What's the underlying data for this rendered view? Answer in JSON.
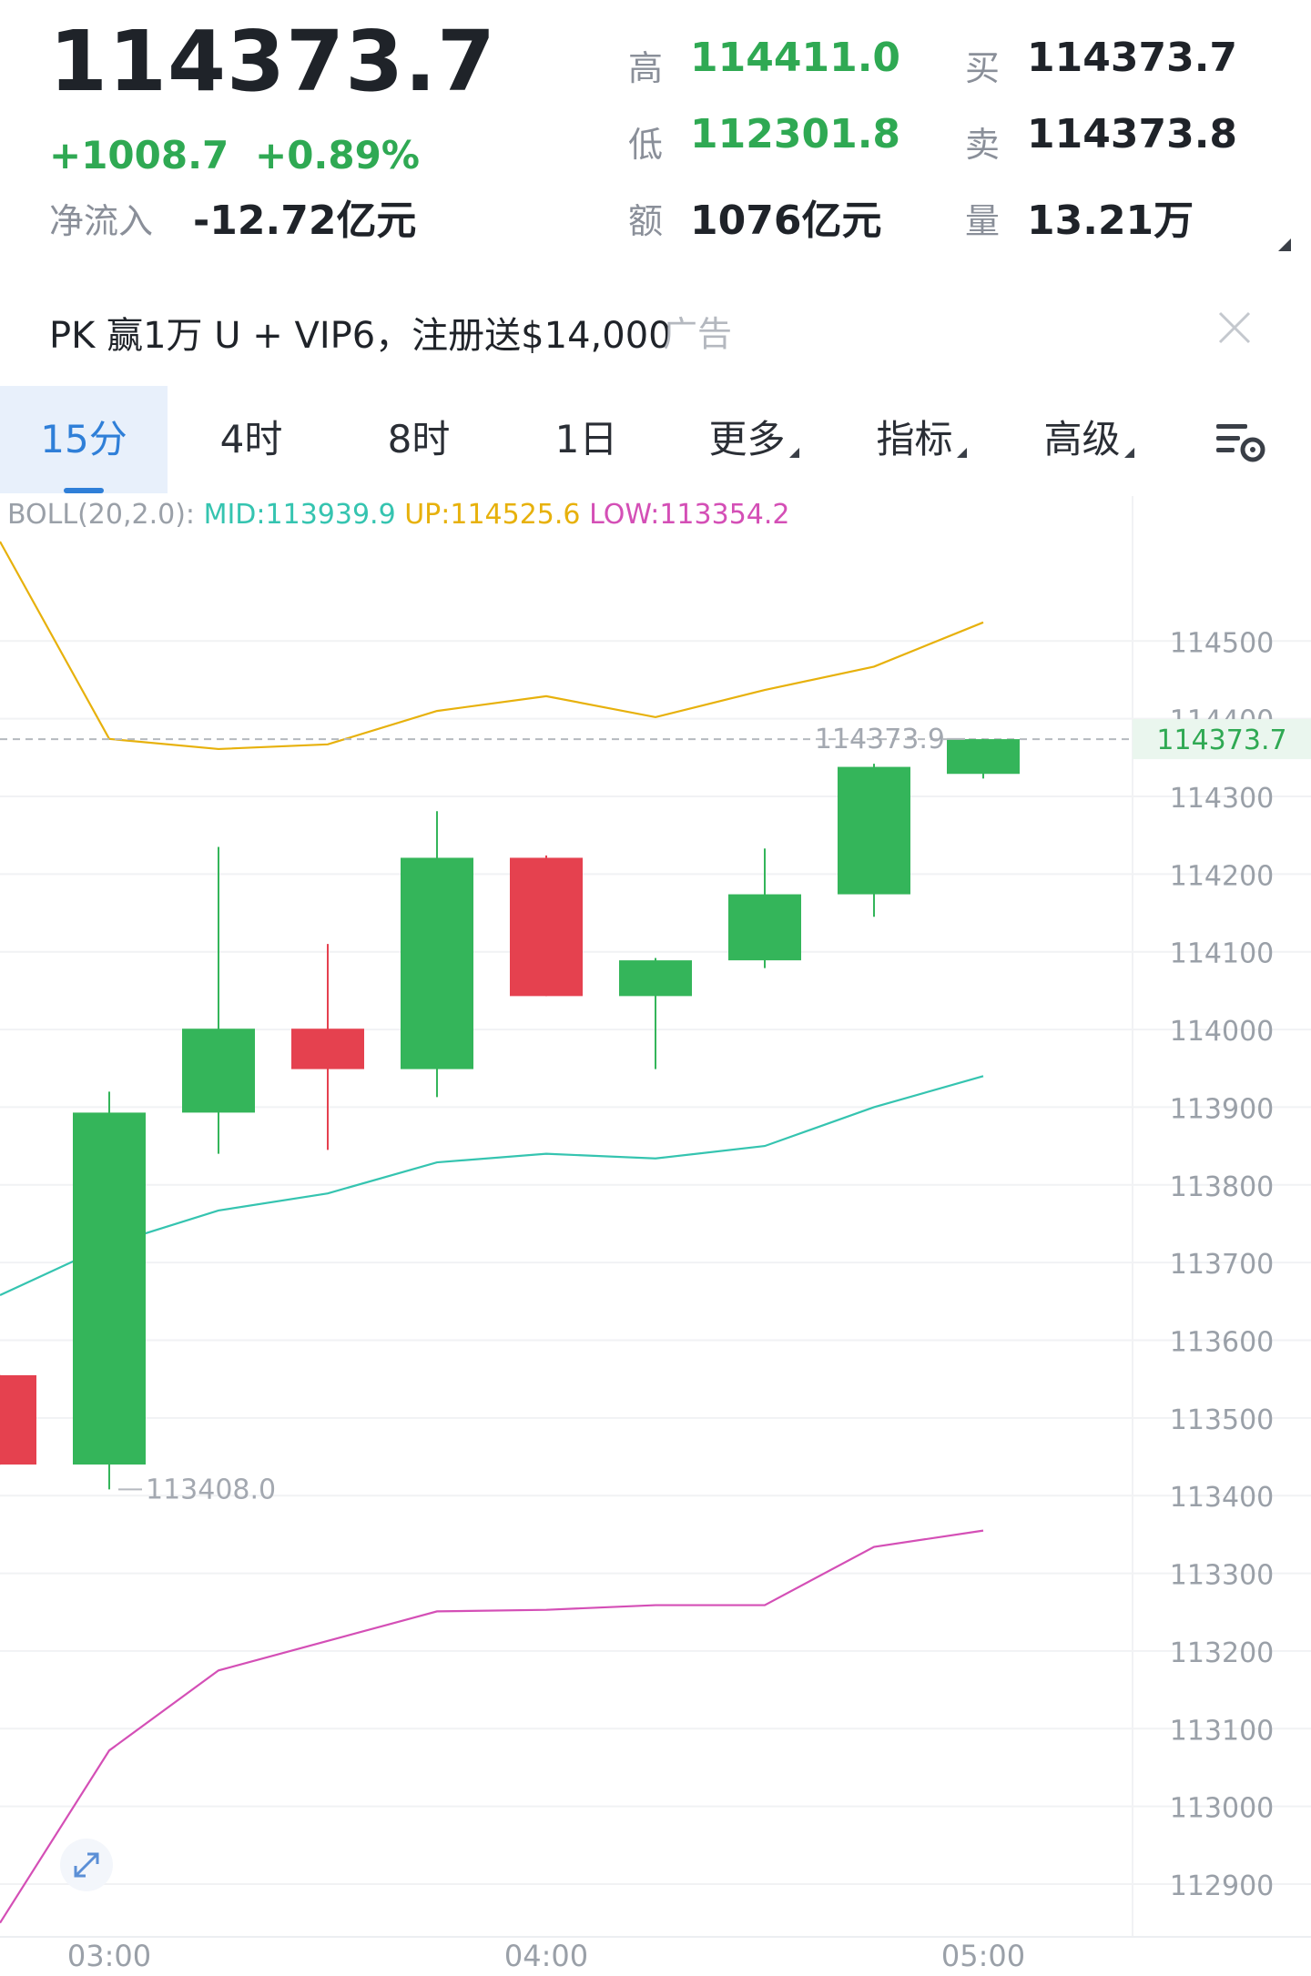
{
  "header": {
    "price": "114373.7",
    "change": "+1008.7",
    "change_pct": "+0.89%",
    "net_inflow_label": "净流入",
    "net_inflow_value": "-12.72亿元",
    "stats": [
      {
        "label": "高",
        "value": "114411.0",
        "green": true
      },
      {
        "label": "低",
        "value": "112301.8",
        "green": true
      },
      {
        "label": "额",
        "value": "1076亿元",
        "green": false
      },
      {
        "label": "买",
        "value": "114373.7",
        "green": false
      },
      {
        "label": "卖",
        "value": "114373.8",
        "green": false
      },
      {
        "label": "量",
        "value": "13.21万",
        "green": false
      }
    ]
  },
  "ad": {
    "text": "PK 赢1万 U + VIP6，注册送$14,000",
    "tag": "广告"
  },
  "tabs": [
    {
      "label": "15分",
      "active": true,
      "dropdown": false
    },
    {
      "label": "4时",
      "active": false,
      "dropdown": false
    },
    {
      "label": "8时",
      "active": false,
      "dropdown": false
    },
    {
      "label": "1日",
      "active": false,
      "dropdown": false
    },
    {
      "label": "更多",
      "active": false,
      "dropdown": true
    },
    {
      "label": "指标",
      "active": false,
      "dropdown": true
    },
    {
      "label": "高级",
      "active": false,
      "dropdown": true
    }
  ],
  "boll": {
    "name": "BOLL(20,2.0):",
    "mid": "MID:113939.9",
    "up": "UP:114525.6",
    "low": "LOW:113354.2"
  },
  "colors": {
    "up": "#34b55a",
    "down": "#e5414f",
    "boll_mid": "#35c4b0",
    "boll_up": "#e7b10c",
    "boll_low": "#d44fb6",
    "accent": "#2f7fd8"
  },
  "chart_data": {
    "type": "candlestick",
    "interval": "15分",
    "ylim": [
      112835,
      114960
    ],
    "y_ticks": [
      112900,
      113000,
      113100,
      113200,
      113300,
      113400,
      113500,
      113600,
      113700,
      113800,
      113900,
      114000,
      114100,
      114200,
      114300,
      114400,
      114500
    ],
    "x_tick_labels": [
      "03:00",
      "04:00",
      "05:00"
    ],
    "x_tick_index": [
      1,
      5,
      9
    ],
    "candles": [
      {
        "open": 113555,
        "high": 113555,
        "low": 113440,
        "close": 113440
      },
      {
        "open": 113440,
        "high": 113920,
        "low": 113408,
        "close": 113893
      },
      {
        "open": 113893,
        "high": 114235,
        "low": 113840,
        "close": 114001
      },
      {
        "open": 114001,
        "high": 114110,
        "low": 113845,
        "close": 113949
      },
      {
        "open": 113949,
        "high": 114281,
        "low": 113913,
        "close": 114221
      },
      {
        "open": 114221,
        "high": 114224,
        "low": 114043,
        "close": 114043
      },
      {
        "open": 114043,
        "high": 114092,
        "low": 113949,
        "close": 114089
      },
      {
        "open": 114089,
        "high": 114233,
        "low": 114079,
        "close": 114174
      },
      {
        "open": 114174,
        "high": 114342,
        "low": 114145,
        "close": 114338
      },
      {
        "open": 114329,
        "high": 114373.9,
        "low": 114323,
        "close": 114373.7
      }
    ],
    "boll_up": [
      114628,
      114374,
      114361,
      114367,
      114410,
      114429,
      114402,
      114437,
      114467,
      114524
    ],
    "boll_mid": [
      113658,
      113723,
      113767,
      113789,
      113829,
      113840,
      113834,
      113850,
      113900,
      113940
    ],
    "boll_low": [
      112850,
      113072,
      113175,
      113213,
      113251,
      113253,
      113259,
      113259,
      113334,
      113355
    ],
    "last_price_label": "114373.7",
    "high_marker": "114373.9",
    "low_marker": "113408.0",
    "x_start_offset": -1
  }
}
